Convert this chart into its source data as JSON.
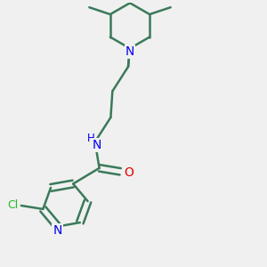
{
  "background_color": "#f0f0f0",
  "bond_color": "#3a7a5a",
  "bond_width": 1.8,
  "atom_colors": {
    "N": "#0000ee",
    "O": "#dd0000",
    "Cl": "#22bb22",
    "C": "#3a7a5a",
    "H": "#3a7a5a"
  },
  "font_size": 9.0
}
